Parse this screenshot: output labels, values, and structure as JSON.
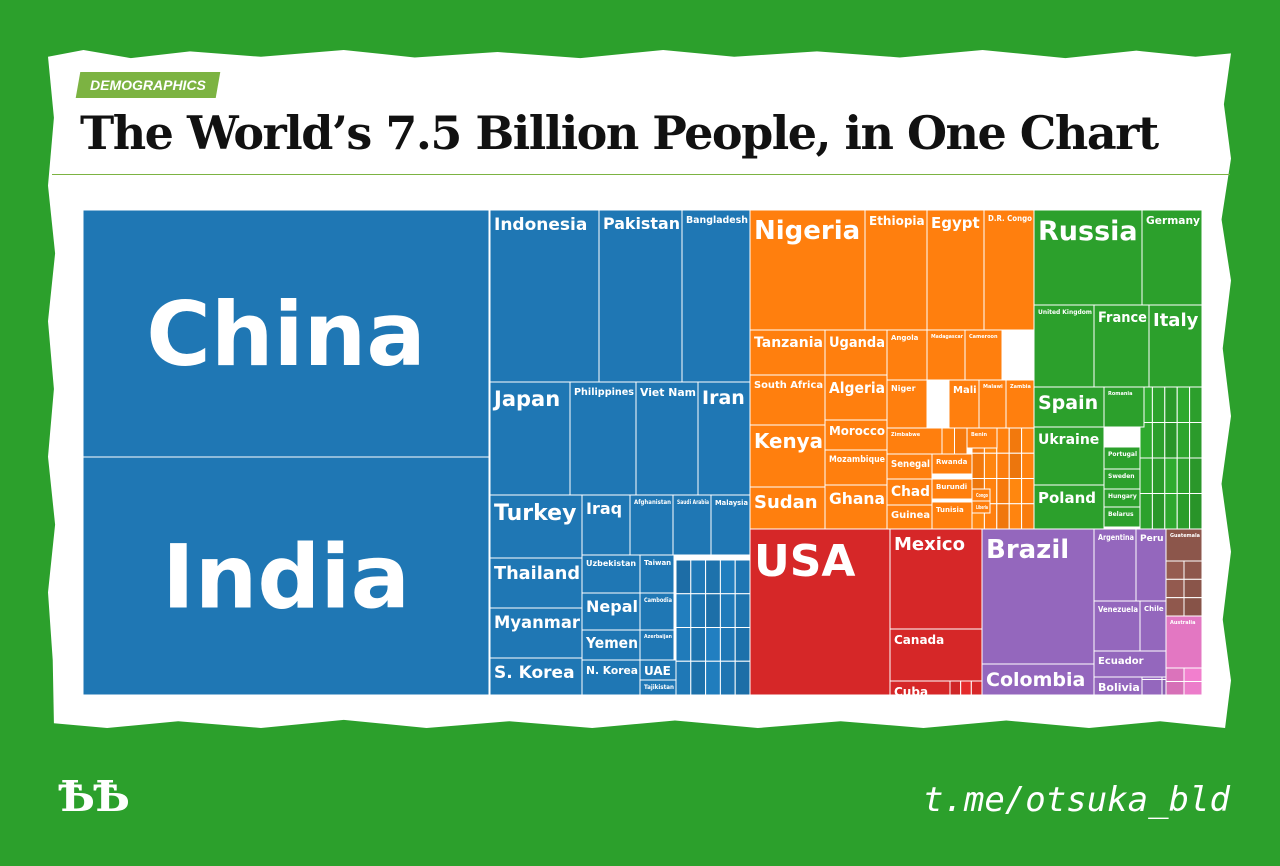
{
  "header": {
    "tag": "DEMOGRAPHICS",
    "title": "The World’s 7.5 Billion People, in One Chart"
  },
  "footer": {
    "logo": "ѢѢ",
    "handle": "t.me/otsuka_bld"
  },
  "colors": {
    "background": "#2ca02c",
    "asia": "#1f77b4",
    "africa": "#ff7f0e",
    "europe": "#2ca02c",
    "north_america": "#d62728",
    "south_america": "#9467bd",
    "oceania": "#8c564b",
    "australia": "#e377c2"
  },
  "chart_data": {
    "type": "treemap",
    "title": "The World’s 7.5 Billion People, in One Chart",
    "unit": "millions",
    "nodes": [
      {
        "name": "China",
        "region": "asia",
        "value": 1410
      },
      {
        "name": "India",
        "region": "asia",
        "value": 1340
      },
      {
        "name": "Indonesia",
        "region": "asia",
        "value": 264
      },
      {
        "name": "Pakistan",
        "region": "asia",
        "value": 197
      },
      {
        "name": "Bangladesh",
        "region": "asia",
        "value": 165
      },
      {
        "name": "Japan",
        "region": "asia",
        "value": 127
      },
      {
        "name": "Philippines",
        "region": "asia",
        "value": 105
      },
      {
        "name": "Viet Nam",
        "region": "asia",
        "value": 96
      },
      {
        "name": "Iran",
        "region": "asia",
        "value": 81
      },
      {
        "name": "Turkey",
        "region": "asia",
        "value": 81
      },
      {
        "name": "Iraq",
        "region": "asia",
        "value": 38
      },
      {
        "name": "Afghanistan",
        "region": "asia",
        "value": 36
      },
      {
        "name": "Saudi Arabia",
        "region": "asia",
        "value": 33
      },
      {
        "name": "Malaysia",
        "region": "asia",
        "value": 32
      },
      {
        "name": "Thailand",
        "region": "asia",
        "value": 69
      },
      {
        "name": "Uzbekistan",
        "region": "asia",
        "value": 32
      },
      {
        "name": "Taiwan",
        "region": "asia",
        "value": 24
      },
      {
        "name": "Myanmar",
        "region": "asia",
        "value": 53
      },
      {
        "name": "Nepal",
        "region": "asia",
        "value": 29
      },
      {
        "name": "Cambodia",
        "region": "asia",
        "value": 16
      },
      {
        "name": "Yemen",
        "region": "asia",
        "value": 28
      },
      {
        "name": "Azerbaijan",
        "region": "asia",
        "value": 10
      },
      {
        "name": "S. Korea",
        "region": "asia",
        "value": 51
      },
      {
        "name": "N. Korea",
        "region": "asia",
        "value": 25
      },
      {
        "name": "UAE",
        "region": "asia",
        "value": 9
      },
      {
        "name": "Tajikistan",
        "region": "asia",
        "value": 9
      },
      {
        "name": "Nigeria",
        "region": "africa",
        "value": 191
      },
      {
        "name": "Ethiopia",
        "region": "africa",
        "value": 105
      },
      {
        "name": "Egypt",
        "region": "africa",
        "value": 98
      },
      {
        "name": "D.R. Congo",
        "region": "africa",
        "value": 81
      },
      {
        "name": "Tanzania",
        "region": "africa",
        "value": 57
      },
      {
        "name": "Uganda",
        "region": "africa",
        "value": 43
      },
      {
        "name": "Angola",
        "region": "africa",
        "value": 30
      },
      {
        "name": "Madagascar",
        "region": "africa",
        "value": 26
      },
      {
        "name": "Cameroon",
        "region": "africa",
        "value": 24
      },
      {
        "name": "South Africa",
        "region": "africa",
        "value": 57
      },
      {
        "name": "Algeria",
        "region": "africa",
        "value": 41
      },
      {
        "name": "Niger",
        "region": "africa",
        "value": 21
      },
      {
        "name": "Mali",
        "region": "africa",
        "value": 18
      },
      {
        "name": "Malawi",
        "region": "africa",
        "value": 19
      },
      {
        "name": "Zambia",
        "region": "africa",
        "value": 17
      },
      {
        "name": "Kenya",
        "region": "africa",
        "value": 50
      },
      {
        "name": "Morocco",
        "region": "africa",
        "value": 36
      },
      {
        "name": "Zimbabwe",
        "region": "africa",
        "value": 17
      },
      {
        "name": "Benin",
        "region": "africa",
        "value": 11
      },
      {
        "name": "Mozambique",
        "region": "africa",
        "value": 30
      },
      {
        "name": "Senegal",
        "region": "africa",
        "value": 16
      },
      {
        "name": "Rwanda",
        "region": "africa",
        "value": 12
      },
      {
        "name": "Sudan",
        "region": "africa",
        "value": 41
      },
      {
        "name": "Ghana",
        "region": "africa",
        "value": 29
      },
      {
        "name": "Chad",
        "region": "africa",
        "value": 15
      },
      {
        "name": "Burundi",
        "region": "africa",
        "value": 11
      },
      {
        "name": "Congo",
        "region": "africa",
        "value": 5
      },
      {
        "name": "Liberia",
        "region": "africa",
        "value": 5
      },
      {
        "name": "Guinea",
        "region": "africa",
        "value": 13
      },
      {
        "name": "Tunisia",
        "region": "africa",
        "value": 12
      },
      {
        "name": "Russia",
        "region": "europe",
        "value": 144
      },
      {
        "name": "Germany",
        "region": "europe",
        "value": 82
      },
      {
        "name": "United Kingdom",
        "region": "europe",
        "value": 66
      },
      {
        "name": "France",
        "region": "europe",
        "value": 65
      },
      {
        "name": "Italy",
        "region": "europe",
        "value": 59
      },
      {
        "name": "Spain",
        "region": "europe",
        "value": 46
      },
      {
        "name": "Romania",
        "region": "europe",
        "value": 20
      },
      {
        "name": "Ukraine",
        "region": "europe",
        "value": 44
      },
      {
        "name": "Portugal",
        "region": "europe",
        "value": 10
      },
      {
        "name": "Sweden",
        "region": "europe",
        "value": 10
      },
      {
        "name": "Poland",
        "region": "europe",
        "value": 38
      },
      {
        "name": "Hungary",
        "region": "europe",
        "value": 10
      },
      {
        "name": "Belarus",
        "region": "europe",
        "value": 9
      },
      {
        "name": "USA",
        "region": "north_america",
        "value": 326
      },
      {
        "name": "Mexico",
        "region": "north_america",
        "value": 129
      },
      {
        "name": "Canada",
        "region": "north_america",
        "value": 37
      },
      {
        "name": "Cuba",
        "region": "north_america",
        "value": 11
      },
      {
        "name": "Brazil",
        "region": "south_america",
        "value": 209
      },
      {
        "name": "Argentina",
        "region": "south_america",
        "value": 44
      },
      {
        "name": "Peru",
        "region": "south_america",
        "value": 32
      },
      {
        "name": "Venezuela",
        "region": "south_america",
        "value": 32
      },
      {
        "name": "Chile",
        "region": "south_america",
        "value": 18
      },
      {
        "name": "Colombia",
        "region": "south_america",
        "value": 49
      },
      {
        "name": "Ecuador",
        "region": "south_america",
        "value": 17
      },
      {
        "name": "Bolivia",
        "region": "south_america",
        "value": 11
      },
      {
        "name": "Guatemala",
        "region": "oceania",
        "value": 17
      },
      {
        "name": "Australia",
        "region": "australia",
        "value": 25
      }
    ]
  }
}
